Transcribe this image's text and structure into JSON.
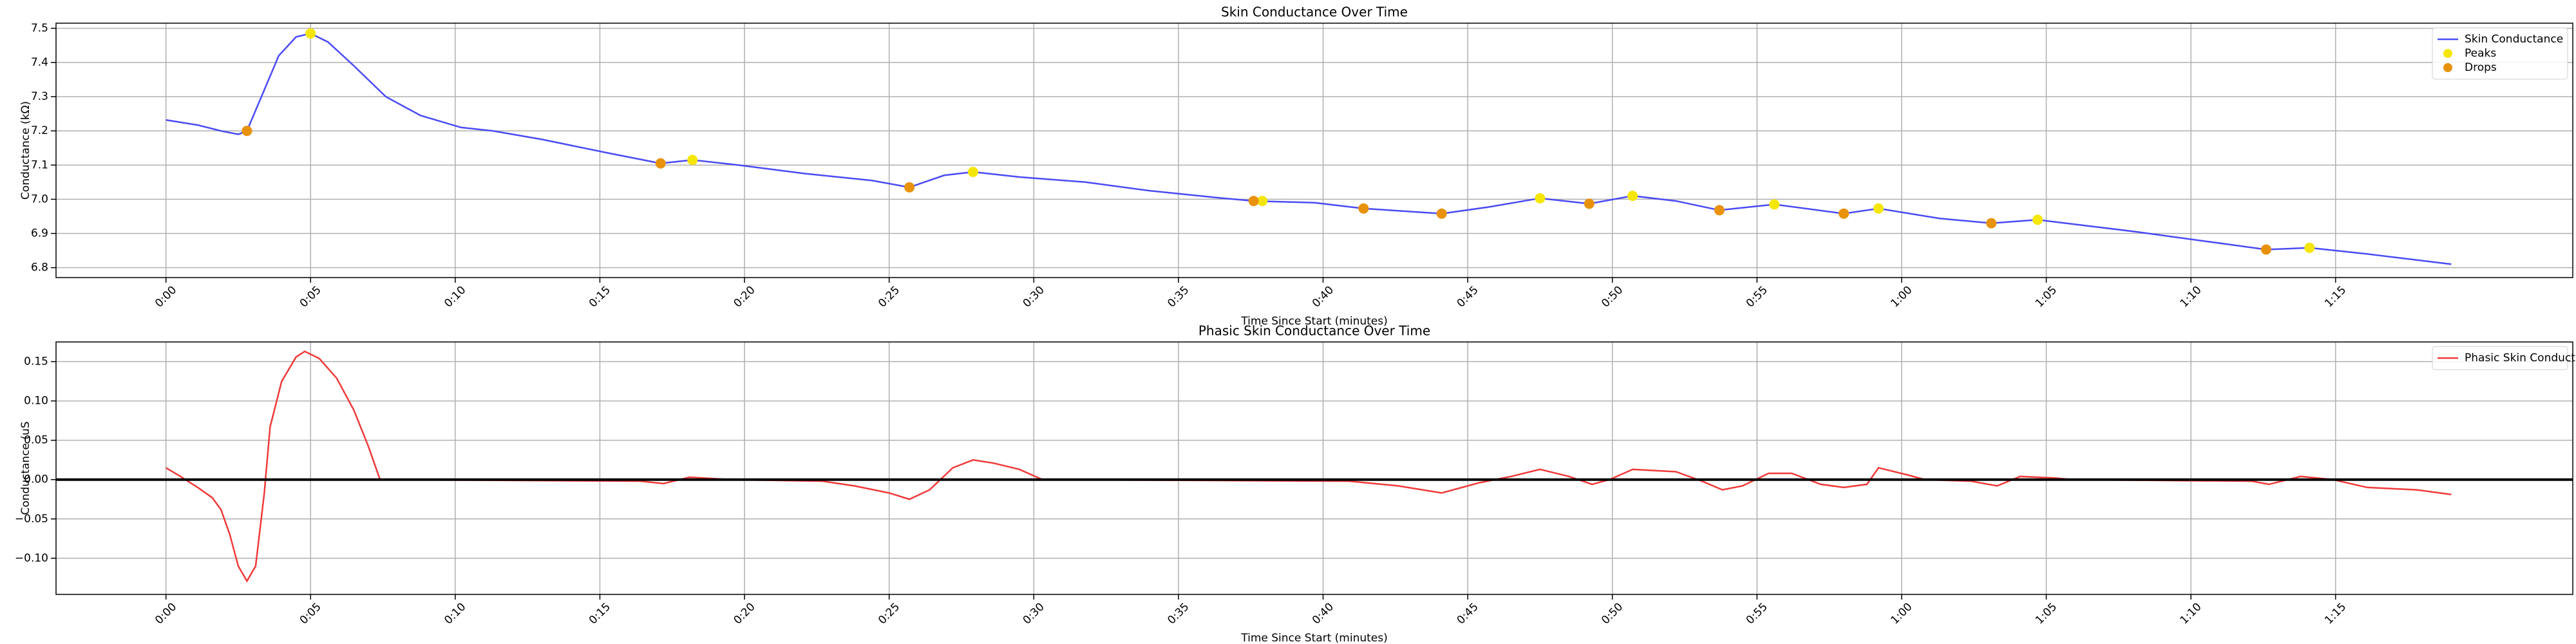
{
  "chart_data": [
    {
      "type": "line",
      "title": "Skin Conductance Over Time",
      "xlabel": "Time Since Start (minutes)",
      "ylabel": "Conductance (kΩ)",
      "xlim": [
        -3.8,
        83.2
      ],
      "ylim": [
        6.771,
        7.515
      ],
      "grid": true,
      "legend": "upper right",
      "xticks": [
        {
          "value": 0,
          "label": "0:00"
        },
        {
          "value": 5,
          "label": "0:05"
        },
        {
          "value": 10,
          "label": "0:10"
        },
        {
          "value": 15,
          "label": "0:15"
        },
        {
          "value": 20,
          "label": "0:20"
        },
        {
          "value": 25,
          "label": "0:25"
        },
        {
          "value": 30,
          "label": "0:30"
        },
        {
          "value": 35,
          "label": "0:35"
        },
        {
          "value": 40,
          "label": "0:40"
        },
        {
          "value": 45,
          "label": "0:45"
        },
        {
          "value": 50,
          "label": "0:50"
        },
        {
          "value": 55,
          "label": "0:55"
        },
        {
          "value": 60,
          "label": "1:00"
        },
        {
          "value": 65,
          "label": "1:05"
        },
        {
          "value": 70,
          "label": "1:10"
        },
        {
          "value": 75,
          "label": "1:15"
        }
      ],
      "yticks": [
        6.8,
        6.9,
        {
          "value": 7,
          "label": "7.0"
        },
        7.1,
        7.2,
        7.3,
        7.4,
        7.5
      ],
      "series": [
        {
          "name": "Skin Conductance",
          "type": "line",
          "color": "#4b4bf5",
          "x": [
            0,
            1.1,
            1.9,
            2.5,
            2.8,
            3.4,
            3.9,
            4.5,
            5.0,
            5.6,
            6.5,
            7.6,
            8.8,
            10.2,
            11.3,
            13.0,
            15.3,
            17.1,
            18.2,
            19.8,
            22.1,
            24.4,
            25.7,
            26.9,
            27.9,
            29.5,
            31.8,
            34.0,
            36.3,
            37.6,
            39.7,
            41.4,
            44.1,
            45.7,
            47.5,
            49.2,
            50.7,
            52.2,
            53.7,
            55.6,
            58.0,
            59.2,
            61.3,
            63.1,
            64.7,
            68.1,
            72.6,
            74.1,
            76.1,
            79.0
          ],
          "values": [
            7.232,
            7.217,
            7.2,
            7.19,
            7.2,
            7.32,
            7.42,
            7.475,
            7.485,
            7.46,
            7.39,
            7.3,
            7.245,
            7.21,
            7.2,
            7.175,
            7.135,
            7.105,
            7.115,
            7.1,
            7.075,
            7.055,
            7.035,
            7.07,
            7.08,
            7.065,
            7.05,
            7.025,
            7.005,
            6.995,
            6.99,
            6.973,
            6.958,
            6.977,
            7.003,
            6.987,
            7.01,
            6.995,
            6.968,
            6.985,
            6.958,
            6.973,
            6.944,
            6.93,
            6.94,
            6.905,
            6.853,
            6.858,
            6.84,
            6.81
          ]
        },
        {
          "name": "Peaks",
          "type": "scatter",
          "color": "#f5e60a",
          "x": [
            5.0,
            18.2,
            27.9,
            37.9,
            47.5,
            50.7,
            55.6,
            59.2,
            64.7,
            74.1
          ],
          "values": [
            7.485,
            7.115,
            7.08,
            6.995,
            7.003,
            7.01,
            6.985,
            6.973,
            6.94,
            6.858
          ]
        },
        {
          "name": "Drops",
          "type": "scatter",
          "color": "#e8920c",
          "x": [
            2.8,
            17.1,
            25.7,
            37.6,
            41.4,
            44.1,
            49.2,
            53.7,
            58.0,
            63.1,
            72.6
          ],
          "values": [
            7.2,
            7.105,
            7.035,
            6.995,
            6.973,
            6.958,
            6.987,
            6.968,
            6.958,
            6.93,
            6.853
          ]
        }
      ]
    },
    {
      "type": "line",
      "title": "Phasic Skin Conductance Over Time",
      "xlabel": "Time Since Start (minutes)",
      "ylabel": "Conductance (uS",
      "xlim": [
        -3.8,
        83.2
      ],
      "ylim": [
        -0.146,
        0.175
      ],
      "grid": true,
      "legend": "upper right",
      "hline": 0,
      "xticks": [
        {
          "value": 0,
          "label": "0:00"
        },
        {
          "value": 5,
          "label": "0:05"
        },
        {
          "value": 10,
          "label": "0:10"
        },
        {
          "value": 15,
          "label": "0:15"
        },
        {
          "value": 20,
          "label": "0:20"
        },
        {
          "value": 25,
          "label": "0:25"
        },
        {
          "value": 30,
          "label": "0:30"
        },
        {
          "value": 35,
          "label": "0:35"
        },
        {
          "value": 40,
          "label": "0:40"
        },
        {
          "value": 45,
          "label": "0:45"
        },
        {
          "value": 50,
          "label": "0:50"
        },
        {
          "value": 55,
          "label": "0:55"
        },
        {
          "value": 60,
          "label": "1:00"
        },
        {
          "value": 65,
          "label": "1:05"
        },
        {
          "value": 70,
          "label": "1:10"
        },
        {
          "value": 75,
          "label": "1:15"
        }
      ],
      "yticks": [
        {
          "value": -0.1,
          "label": "−0.10"
        },
        {
          "value": -0.05,
          "label": "−0.05"
        },
        {
          "value": 0,
          "label": "0.00"
        },
        {
          "value": 0.05,
          "label": "0.05"
        },
        {
          "value": 0.1,
          "label": "0.10"
        },
        {
          "value": 0.15,
          "label": "0.15"
        }
      ],
      "series": [
        {
          "name": "Phasic Skin Conductance",
          "type": "line",
          "color": "#f03a3a",
          "x": [
            0,
            0.5,
            1.1,
            1.6,
            1.9,
            2.2,
            2.5,
            2.8,
            3.1,
            3.4,
            3.6,
            4.0,
            4.5,
            4.8,
            5.3,
            5.9,
            6.5,
            7.0,
            7.4,
            16.4,
            17.2,
            18.1,
            19.5,
            22.7,
            23.8,
            25.0,
            25.7,
            26.4,
            27.2,
            27.9,
            28.6,
            29.5,
            30.3,
            40.9,
            42.6,
            44.1,
            45.4,
            46.5,
            47.5,
            48.5,
            49.3,
            49.9,
            50.7,
            52.2,
            53.1,
            53.8,
            54.5,
            55.4,
            56.2,
            57.2,
            58.0,
            58.8,
            59.2,
            60.2,
            60.8,
            62.4,
            63.3,
            64.1,
            65.3,
            65.9,
            72.1,
            72.7,
            73.8,
            74.9,
            76.1,
            77.8,
            79.0
          ],
          "values": [
            0.015,
            0.004,
            -0.01,
            -0.023,
            -0.038,
            -0.069,
            -0.11,
            -0.129,
            -0.11,
            -0.017,
            0.067,
            0.125,
            0.156,
            0.163,
            0.154,
            0.129,
            0.088,
            0.042,
            0,
            -0.002,
            -0.005,
            0.003,
            0,
            -0.002,
            -0.008,
            -0.017,
            -0.025,
            -0.013,
            0.015,
            0.025,
            0.021,
            0.013,
            0,
            -0.002,
            -0.008,
            -0.017,
            -0.004,
            0.004,
            0.013,
            0.004,
            -0.006,
            0,
            0.013,
            0.01,
            -0.002,
            -0.013,
            -0.008,
            0.008,
            0.008,
            -0.006,
            -0.01,
            -0.006,
            0.015,
            0.006,
            0,
            -0.002,
            -0.008,
            0.004,
            0.002,
            0,
            -0.002,
            -0.006,
            0.004,
            0,
            -0.01,
            -0.013,
            -0.019
          ]
        }
      ]
    }
  ]
}
